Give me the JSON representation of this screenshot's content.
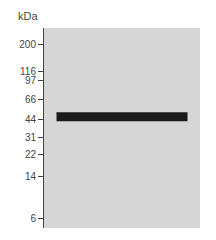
{
  "chart_data": {
    "type": "gel",
    "y_label": "kDa",
    "values": [
      47
    ],
    "color": "#1a1a1a",
    "log": "y",
    "ylim": [
      5,
      280
    ],
    "yticks": [
      200,
      116,
      97,
      66,
      44,
      31,
      22,
      14,
      6
    ],
    "grid": false,
    "tick_labels": "y"
  }
}
